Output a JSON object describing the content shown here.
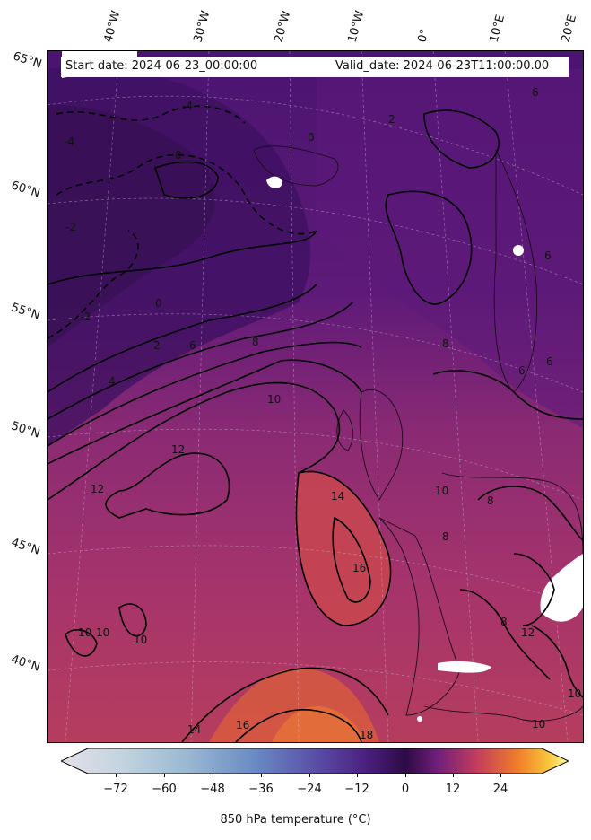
{
  "map": {
    "start_date": "Start date: 2024-06-23_00:00:00",
    "valid_date": "Valid_date: 2024-06-23T11:00:00.00"
  },
  "longitude_labels": [
    "40°W",
    "30°W",
    "20°W",
    "10°W",
    "0°",
    "10°E",
    "20°E"
  ],
  "latitude_labels": [
    "65°N",
    "60°N",
    "55°N",
    "50°N",
    "45°N",
    "40°N"
  ],
  "contour_labels": [
    "-4",
    "-4",
    "-2",
    "0",
    "0",
    "-2",
    "2",
    "0",
    "2",
    "4",
    "6",
    "8",
    "10",
    "12",
    "12",
    "10",
    "14",
    "16",
    "10",
    "10",
    "10",
    "14",
    "16",
    "18",
    "10",
    "8",
    "6",
    "6",
    "8",
    "10",
    "12",
    "6",
    "6",
    "8",
    "8"
  ],
  "colorbar": {
    "ticks": [
      "−72",
      "−60",
      "−48",
      "−36",
      "−24",
      "−12",
      "0",
      "12",
      "24"
    ],
    "label": "850 hPa temperature (°C)",
    "colormap": "inferno"
  }
}
